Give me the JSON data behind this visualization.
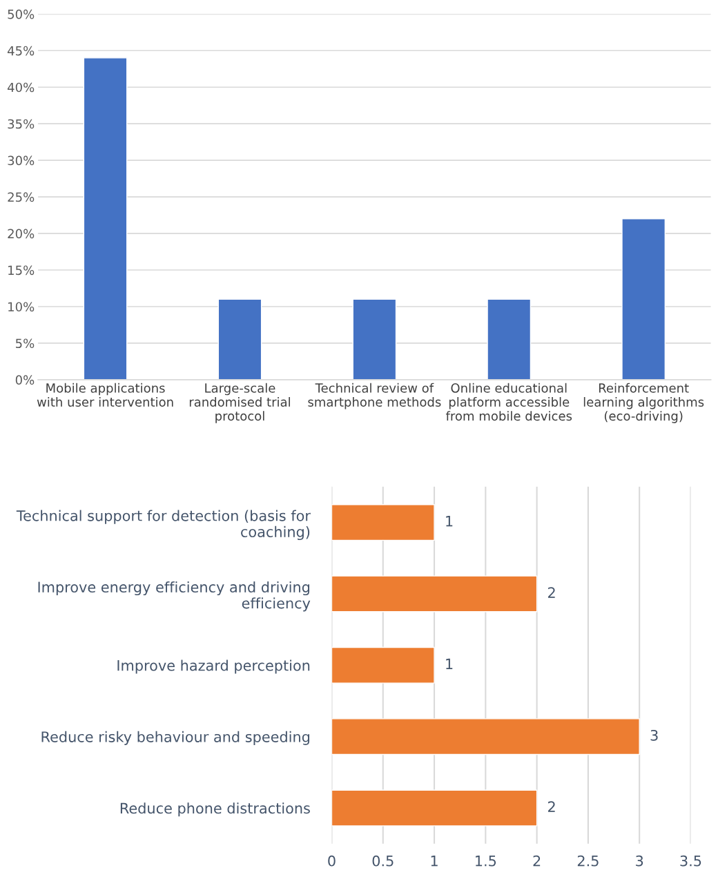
{
  "chart_data": [
    {
      "type": "bar",
      "categories": [
        "Mobile applications\nwith user intervention",
        "Large-scale\nrandomised trial\nprotocol",
        "Technical review of\nsmartphone methods",
        "Online educational\nplatform accessible\nfrom mobile devices",
        "Reinforcement\nlearning algorithms\n(eco-driving)"
      ],
      "values": [
        44,
        11,
        11,
        11,
        22
      ],
      "color": "#4472c4",
      "ylim": [
        0,
        50
      ],
      "yticks": [
        {
          "value": 0,
          "label": "0%"
        },
        {
          "value": 5,
          "label": "5%"
        },
        {
          "value": 10,
          "label": "10%"
        },
        {
          "value": 15,
          "label": "15%"
        },
        {
          "value": 20,
          "label": "20%"
        },
        {
          "value": 25,
          "label": "25%"
        },
        {
          "value": 30,
          "label": "30%"
        },
        {
          "value": 35,
          "label": "35%"
        },
        {
          "value": 40,
          "label": "40%"
        },
        {
          "value": 45,
          "label": "45%"
        },
        {
          "value": 50,
          "label": "50%"
        }
      ],
      "grid": "y"
    },
    {
      "type": "bar",
      "orientation": "horizontal",
      "categories": [
        "Technical support for detection (basis for\ncoaching)",
        "Improve energy efficiency and driving\nefficiency",
        "Improve hazard perception",
        "Reduce risky behaviour and speeding",
        "Reduce phone distractions"
      ],
      "values": [
        1,
        2,
        1,
        3,
        2
      ],
      "color": "#ed7d31",
      "xlim": [
        0,
        3.5
      ],
      "xticks": [
        0,
        0.5,
        1,
        1.5,
        2,
        2.5,
        3,
        3.5
      ],
      "grid": "x",
      "data_labels": true
    }
  ]
}
